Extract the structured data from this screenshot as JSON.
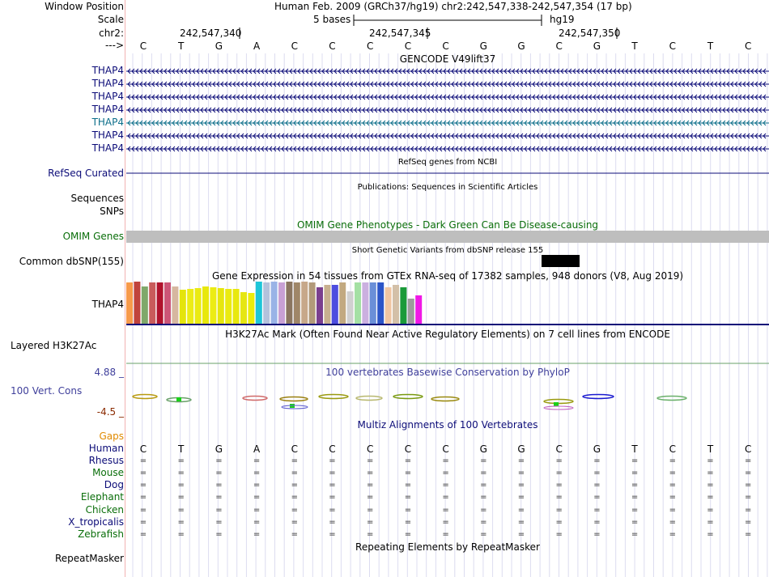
{
  "header": {
    "window_position_label": "Window Position",
    "window_position_value": "Human Feb. 2009 (GRCh37/hg19)   chr2:242,547,338-242,547,354 (17 bp)",
    "scale_label": "Scale",
    "scale_span": "5 bases",
    "scale_assembly": "hg19",
    "chrom_label": "chr2:",
    "positions": [
      "242,547,340",
      "242,547,345",
      "242,547,350"
    ],
    "strand_label": "--->"
  },
  "bases": [
    "C",
    "T",
    "G",
    "A",
    "C",
    "C",
    "C",
    "C",
    "C",
    "G",
    "G",
    "C",
    "G",
    "T",
    "C",
    "T",
    "C"
  ],
  "gencode": {
    "title": "GENCODE V49lift37",
    "transcripts": [
      "THAP4",
      "THAP4",
      "THAP4",
      "THAP4",
      "THAP4",
      "THAP4",
      "THAP4"
    ],
    "colors": [
      "#0c0c78",
      "#0c0c78",
      "#0c0c78",
      "#0c0c78",
      "#0c6e8a",
      "#0c0c78",
      "#0c0c78"
    ]
  },
  "refseq": {
    "title": "RefSeq genes from NCBI",
    "label": "RefSeq Curated"
  },
  "publications": {
    "title": "Publications: Sequences in Scientific Articles",
    "label": "Sequences"
  },
  "snps": {
    "label": "SNPs"
  },
  "omim": {
    "title": "OMIM Gene Phenotypes - Dark Green Can Be Disease-causing",
    "label": "OMIM Genes",
    "color": "#0a6e0a"
  },
  "dbsnp": {
    "title": "Short Genetic Variants from dbSNP release 155",
    "label": "Common dbSNP(155)"
  },
  "gtex": {
    "title": "Gene Expression in 54 tissues from GTEx RNA-seq of 17382 samples, 948 donors (V8, Aug 2019)",
    "label": "THAP4"
  },
  "h3k27ac": {
    "title": "H3K27Ac Mark (Often Found Near Active Regulatory Elements) on 7 cell lines from ENCODE",
    "label": "Layered H3K27Ac"
  },
  "conservation": {
    "title": "100 vertebrates Basewise Conservation by PhyloP",
    "label": "100 Vert. Cons",
    "max_label": "4.88 _",
    "min_label": "-4.5 _"
  },
  "multiz": {
    "title": "Multiz Alignments of 100 Vertebrates",
    "gaps_label": "Gaps",
    "species": [
      {
        "name": "Human",
        "color": "#0c0c78"
      },
      {
        "name": "Rhesus",
        "color": "#0c0c78"
      },
      {
        "name": "Mouse",
        "color": "#0a6e0a"
      },
      {
        "name": "Dog",
        "color": "#0c0c78"
      },
      {
        "name": "Elephant",
        "color": "#0a6e0a"
      },
      {
        "name": "Chicken",
        "color": "#0a6e0a"
      },
      {
        "name": "X_tropicalis",
        "color": "#0c0c78"
      },
      {
        "name": "Zebrafish",
        "color": "#0a6e0a"
      }
    ],
    "match_symbol": "="
  },
  "repeatmasker": {
    "title": "Repeating Elements by RepeatMasker",
    "label": "RepeatMasker"
  },
  "colors": {
    "label_blue": "#0c0c78",
    "gaps_orange": "#e08a00",
    "cons_blue": "#3f3f9b",
    "omim_bar": "#bebebe"
  }
}
